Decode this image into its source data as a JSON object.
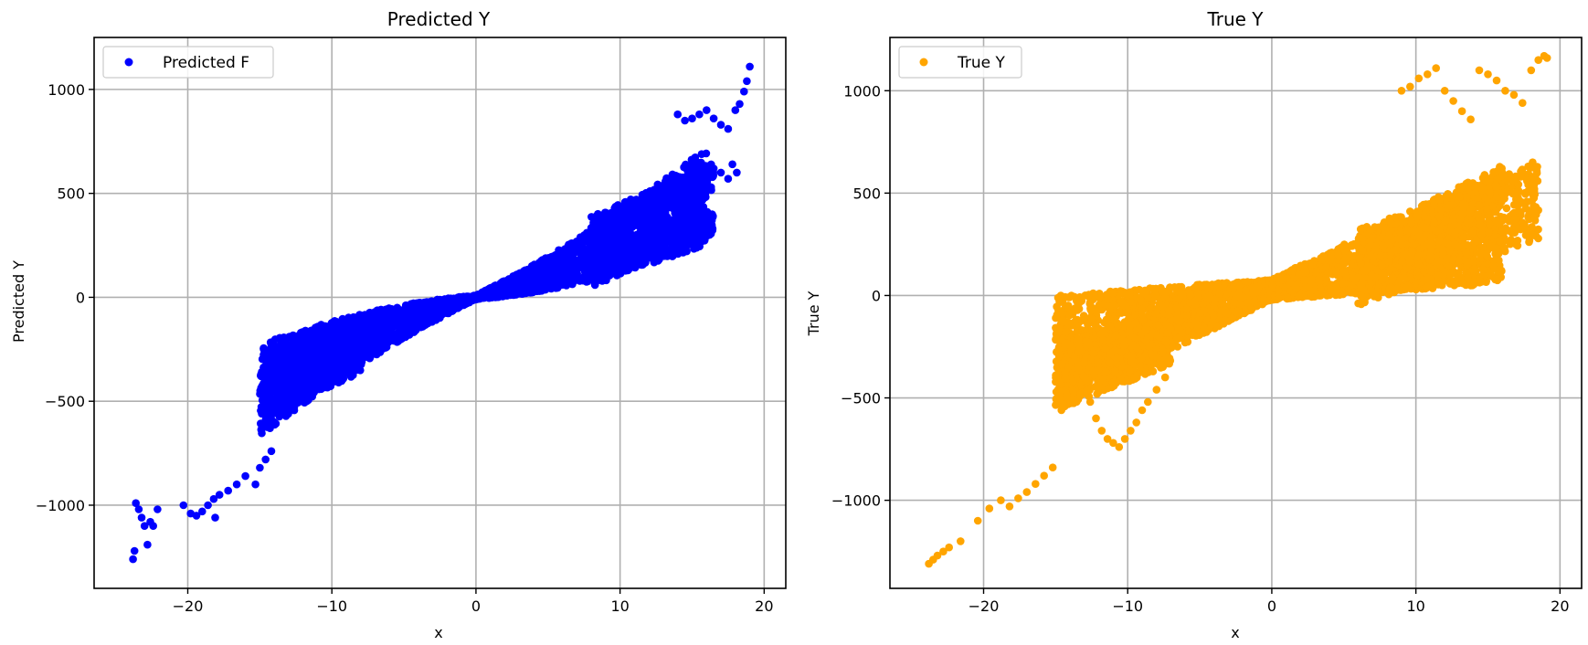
{
  "chart_data": [
    {
      "type": "scatter",
      "title": "Predicted Y",
      "xlabel": "x",
      "ylabel": "Predicted Y",
      "xlim": [
        -26.5,
        21.5
      ],
      "ylim": [
        -1400,
        1250
      ],
      "xticks": [
        -20,
        -10,
        0,
        10,
        20
      ],
      "yticks": [
        -1000,
        -500,
        0,
        500,
        1000
      ],
      "xtick_labels": [
        "−20",
        "−10",
        "0",
        "10",
        "20"
      ],
      "ytick_labels": [
        "−1000",
        "−500",
        "0",
        "500",
        "1000"
      ],
      "grid": true,
      "legend": "upper-left",
      "series": [
        {
          "name": "Predicted F",
          "color": "#0000ff",
          "band_scale": 1.0,
          "points": [
            [
              -23.8,
              -1260
            ],
            [
              -23.7,
              -1220
            ],
            [
              -23.6,
              -990
            ],
            [
              -23.4,
              -1020
            ],
            [
              -23.2,
              -1060
            ],
            [
              -23.0,
              -1100
            ],
            [
              -22.8,
              -1190
            ],
            [
              -22.6,
              -1080
            ],
            [
              -22.4,
              -1100
            ],
            [
              -22.1,
              -1020
            ],
            [
              -20.3,
              -1000
            ],
            [
              -19.8,
              -1040
            ],
            [
              -19.4,
              -1050
            ],
            [
              -19.0,
              -1030
            ],
            [
              -18.6,
              -1000
            ],
            [
              -18.2,
              -970
            ],
            [
              -18.1,
              -1060
            ],
            [
              -17.8,
              -950
            ],
            [
              -17.2,
              -930
            ],
            [
              -16.6,
              -900
            ],
            [
              -16.0,
              -860
            ],
            [
              -15.3,
              -900
            ],
            [
              -15.0,
              -820
            ],
            [
              -14.6,
              -780
            ],
            [
              -14.2,
              -740
            ],
            [
              -14.4,
              -560
            ],
            [
              -14.0,
              -600
            ],
            [
              -13.8,
              -460
            ],
            [
              -13.4,
              -520
            ],
            [
              -13.0,
              -430
            ],
            [
              -12.6,
              -480
            ],
            [
              -12.2,
              -400
            ],
            [
              -11.8,
              -360
            ],
            [
              -11.4,
              -330
            ],
            [
              -11.0,
              -300
            ],
            [
              -10.6,
              -270
            ],
            [
              -10.2,
              -240
            ],
            [
              -9.8,
              -300
            ],
            [
              -9.4,
              -260
            ],
            [
              -8.8,
              -230
            ],
            [
              -8.2,
              -200
            ],
            [
              -7.6,
              -180
            ],
            [
              -7.0,
              -160
            ],
            [
              14.0,
              880
            ],
            [
              14.5,
              850
            ],
            [
              15.0,
              860
            ],
            [
              15.5,
              880
            ],
            [
              16.0,
              900
            ],
            [
              16.5,
              860
            ],
            [
              17.0,
              830
            ],
            [
              17.5,
              810
            ],
            [
              18.0,
              900
            ],
            [
              18.3,
              930
            ],
            [
              18.6,
              990
            ],
            [
              18.8,
              1040
            ],
            [
              19.0,
              1110
            ],
            [
              17.8,
              640
            ],
            [
              18.1,
              600
            ],
            [
              17.5,
              570
            ],
            [
              17.0,
              600
            ],
            [
              16.5,
              620
            ],
            [
              16.0,
              560
            ],
            [
              15.5,
              520
            ],
            [
              15.0,
              480
            ],
            [
              14.5,
              440
            ],
            [
              14.0,
              400
            ],
            [
              13.5,
              360
            ],
            [
              13.0,
              340
            ],
            [
              12.5,
              320
            ],
            [
              12.0,
              300
            ]
          ]
        }
      ]
    },
    {
      "type": "scatter",
      "title": "True Y",
      "xlabel": "x",
      "ylabel": "True Y",
      "xlim": [
        -26.5,
        21.5
      ],
      "ylim": [
        -1430,
        1260
      ],
      "xticks": [
        -20,
        -10,
        0,
        10,
        20
      ],
      "yticks": [
        -1000,
        -500,
        0,
        500,
        1000
      ],
      "xtick_labels": [
        "−20",
        "−10",
        "0",
        "10",
        "20"
      ],
      "ytick_labels": [
        "−1000",
        "−500",
        "0",
        "500",
        "1000"
      ],
      "grid": true,
      "legend": "upper-left",
      "series": [
        {
          "name": "True Y",
          "color": "#ffa500",
          "band_scale": 1.25,
          "points": [
            [
              -23.8,
              -1310
            ],
            [
              -23.5,
              -1290
            ],
            [
              -23.2,
              -1270
            ],
            [
              -22.8,
              -1250
            ],
            [
              -22.4,
              -1230
            ],
            [
              -21.6,
              -1200
            ],
            [
              -20.4,
              -1100
            ],
            [
              -19.6,
              -1040
            ],
            [
              -18.8,
              -1000
            ],
            [
              -18.2,
              -1030
            ],
            [
              -17.6,
              -990
            ],
            [
              -17.0,
              -960
            ],
            [
              -16.4,
              -920
            ],
            [
              -15.8,
              -880
            ],
            [
              -15.2,
              -840
            ],
            [
              -14.6,
              -560
            ],
            [
              -14.2,
              -500
            ],
            [
              -13.8,
              -420
            ],
            [
              -13.4,
              -360
            ],
            [
              -13.0,
              -330
            ],
            [
              -12.6,
              -520
            ],
            [
              -12.2,
              -600
            ],
            [
              -11.8,
              -660
            ],
            [
              -11.4,
              -700
            ],
            [
              -11.0,
              -720
            ],
            [
              -10.6,
              -740
            ],
            [
              -10.2,
              -700
            ],
            [
              -9.8,
              -660
            ],
            [
              -9.4,
              -620
            ],
            [
              -9.0,
              -560
            ],
            [
              -8.6,
              -520
            ],
            [
              -8.0,
              -460
            ],
            [
              -7.4,
              -400
            ],
            [
              9.0,
              1000
            ],
            [
              9.6,
              1020
            ],
            [
              10.2,
              1060
            ],
            [
              10.8,
              1080
            ],
            [
              11.4,
              1110
            ],
            [
              12.0,
              1000
            ],
            [
              12.6,
              950
            ],
            [
              13.2,
              900
            ],
            [
              13.8,
              860
            ],
            [
              14.4,
              1100
            ],
            [
              15.0,
              1080
            ],
            [
              15.6,
              1050
            ],
            [
              16.2,
              1000
            ],
            [
              16.8,
              980
            ],
            [
              17.4,
              940
            ],
            [
              18.0,
              1100
            ],
            [
              18.5,
              1150
            ],
            [
              18.9,
              1170
            ],
            [
              19.1,
              1160
            ],
            [
              17.8,
              630
            ],
            [
              18.1,
              650
            ],
            [
              17.4,
              600
            ],
            [
              16.8,
              560
            ],
            [
              16.2,
              520
            ],
            [
              15.6,
              480
            ],
            [
              15.0,
              460
            ],
            [
              14.4,
              440
            ],
            [
              13.8,
              420
            ],
            [
              13.2,
              400
            ],
            [
              12.6,
              380
            ],
            [
              12.0,
              360
            ]
          ]
        }
      ]
    }
  ]
}
